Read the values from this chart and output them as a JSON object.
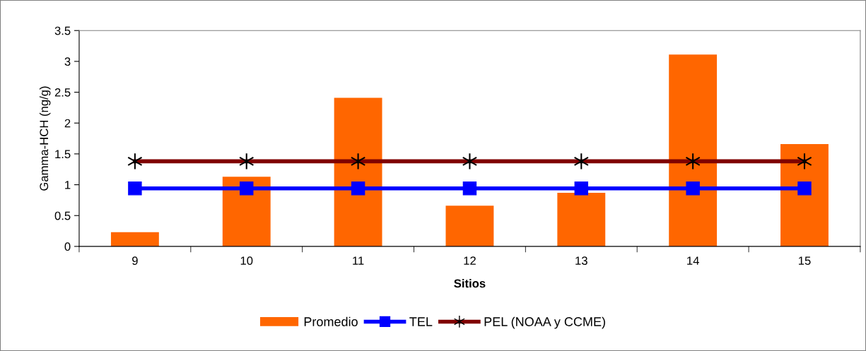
{
  "chart_data": {
    "type": "bar",
    "xlabel": "Sitios",
    "ylabel": "Gamma-HCH (ng/g)",
    "categories": [
      "9",
      "10",
      "11",
      "12",
      "13",
      "14",
      "15"
    ],
    "series": [
      {
        "name": "Promedio",
        "color": "#ff6600",
        "values": [
          0.23,
          1.13,
          2.41,
          0.66,
          0.87,
          3.11,
          1.66
        ]
      },
      {
        "name": "TEL",
        "type": "line",
        "color": "#0000ff",
        "marker": "square",
        "values": [
          0.94,
          0.94,
          0.94,
          0.94,
          0.94,
          0.94,
          0.94
        ]
      },
      {
        "name": "PEL (NOAA y CCME)",
        "type": "line",
        "color": "#800000",
        "marker": "cross",
        "values": [
          1.38,
          1.38,
          1.38,
          1.38,
          1.38,
          1.38,
          1.38
        ]
      }
    ],
    "ylim": [
      0,
      3.5
    ],
    "yticks": [
      0,
      0.5,
      1,
      1.5,
      2,
      2.5,
      3,
      3.5
    ],
    "grid": false,
    "legend": "bottom"
  }
}
